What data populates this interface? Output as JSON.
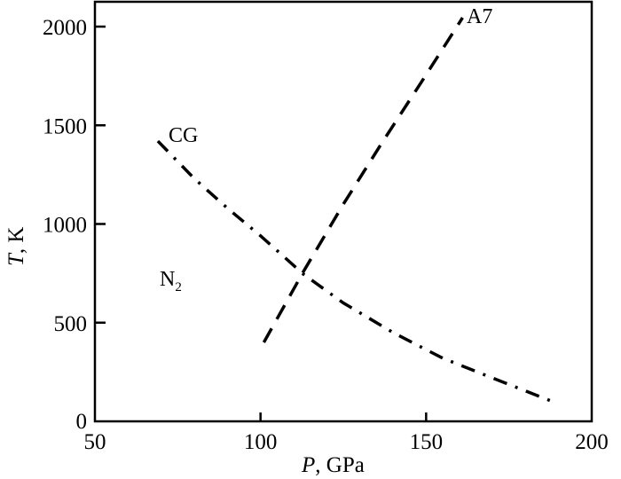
{
  "chart_data": {
    "type": "line",
    "title": "",
    "xlabel": "P, GPa",
    "xlabel_var": "P",
    "xlabel_unit": ", GPa",
    "ylabel": "T, K",
    "ylabel_var": "T",
    "ylabel_unit": ", K",
    "xlim": [
      50,
      200
    ],
    "ylim": [
      0,
      2120
    ],
    "xticks": [
      50,
      100,
      150,
      200
    ],
    "xtick_labels": [
      "50",
      "100",
      "150",
      "200"
    ],
    "yticks": [
      0,
      500,
      1000,
      1500,
      2000
    ],
    "ytick_labels": [
      "0",
      "500",
      "1000",
      "1500",
      "2000"
    ],
    "grid": false,
    "legend": "none (inline curve labels)",
    "series": [
      {
        "name": "A7",
        "style": "dashed",
        "x": [
          101,
          113,
          125,
          137,
          149,
          161
        ],
        "y": [
          400,
          760,
          1100,
          1420,
          1730,
          2045
        ]
      },
      {
        "name": "CG",
        "style": "dash-dot",
        "x": [
          69,
          80,
          90,
          100,
          113,
          125,
          140,
          155,
          170,
          189
        ],
        "y": [
          1420,
          1230,
          1080,
          940,
          745,
          600,
          450,
          320,
          220,
          95
        ]
      }
    ],
    "annotations": [
      {
        "text": "CG",
        "x": 75,
        "y": 1450
      },
      {
        "text": "A7",
        "x": 163,
        "y": 2040
      },
      {
        "text": "N",
        "subscript": "2",
        "x": 74,
        "y": 720
      }
    ]
  }
}
